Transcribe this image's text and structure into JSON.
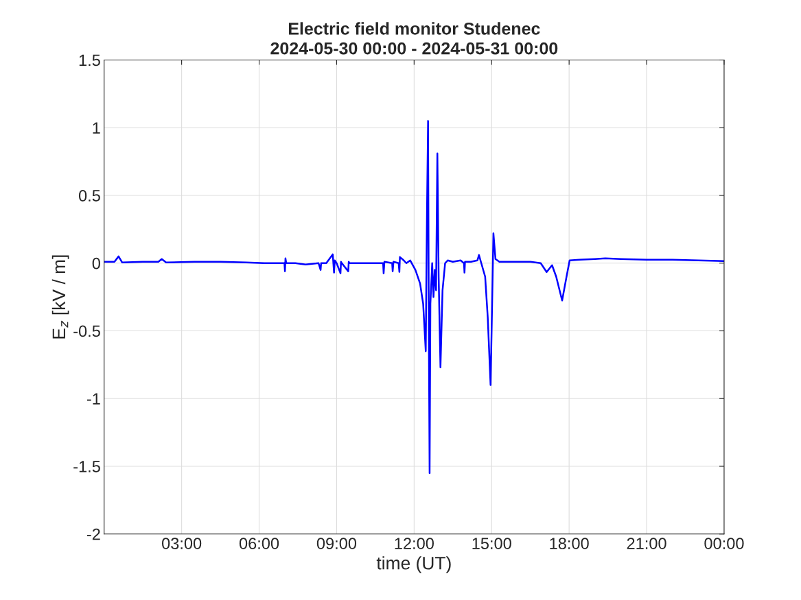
{
  "chart_data": {
    "type": "line",
    "title": "Electric field monitor Studenec\n2024-05-30 00:00 - 2024-05-31 00:00",
    "xlabel": "time (UT)",
    "ylabel": "E$_{z}$ [kV / m]",
    "series": [
      {
        "color": "#0000ff",
        "x": [
          0,
          0.4,
          0.56,
          0.7,
          1.5,
          2.1,
          2.23,
          2.4,
          3.5,
          4.5,
          5.5,
          6.2,
          6.5,
          6.98,
          7.0,
          7.02,
          7.05,
          7.4,
          7.8,
          8.3,
          8.38,
          8.4,
          8.6,
          8.85,
          8.9,
          8.93,
          9.0,
          9.15,
          9.17,
          9.2,
          9.45,
          9.47,
          9.5,
          10.0,
          10.3,
          10.8,
          10.82,
          10.85,
          11.15,
          11.17,
          11.2,
          11.4,
          11.43,
          11.45,
          11.6,
          11.7,
          11.85,
          12.05,
          12.23,
          12.35,
          12.45,
          12.47,
          12.5,
          12.54,
          12.57,
          12.6,
          12.63,
          12.7,
          12.75,
          12.8,
          12.85,
          12.9,
          12.95,
          13.02,
          13.1,
          13.2,
          13.3,
          13.5,
          13.8,
          13.93,
          13.95,
          13.97,
          14.2,
          14.45,
          14.51,
          14.6,
          14.75,
          14.85,
          14.96,
          15.0,
          15.07,
          15.15,
          15.3,
          15.6,
          16.0,
          16.5,
          16.9,
          17.13,
          17.34,
          17.5,
          17.73,
          17.9,
          18.02,
          18.4,
          19.0,
          19.4,
          20.0,
          21.0,
          22.0,
          23.0,
          24.0
        ],
        "values": [
          0.01,
          0.01,
          0.05,
          0.005,
          0.01,
          0.01,
          0.03,
          0.005,
          0.01,
          0.01,
          0.005,
          0.0,
          0.0,
          0.0,
          -0.06,
          0.035,
          0.0,
          0.0,
          -0.01,
          0.0,
          -0.05,
          0.0,
          0.0,
          0.065,
          -0.07,
          0.02,
          0.0,
          -0.075,
          0.01,
          0.0,
          -0.06,
          0.01,
          0.0,
          0.0,
          0.0,
          0.0,
          -0.075,
          0.01,
          0.0,
          -0.06,
          0.01,
          0.0,
          -0.065,
          0.045,
          0.02,
          0.0,
          0.02,
          -0.05,
          -0.15,
          -0.3,
          -0.65,
          -0.2,
          0.4,
          1.05,
          -0.5,
          -1.55,
          -0.3,
          0.0,
          -0.25,
          -0.05,
          -0.2,
          0.81,
          -0.1,
          -0.77,
          -0.2,
          0.0,
          0.02,
          0.01,
          0.02,
          0.0,
          -0.07,
          0.01,
          0.01,
          0.02,
          0.06,
          0.0,
          -0.1,
          -0.4,
          -0.9,
          -0.5,
          0.22,
          0.03,
          0.01,
          0.01,
          0.01,
          0.01,
          0.0,
          -0.066,
          -0.015,
          -0.1,
          -0.276,
          -0.1,
          0.02,
          0.025,
          0.03,
          0.035,
          0.03,
          0.025,
          0.025,
          0.02,
          0.015
        ]
      }
    ],
    "xlim": [
      0,
      24
    ],
    "xticks": [
      {
        "value": 3,
        "label": "03:00"
      },
      {
        "value": 6,
        "label": "06:00"
      },
      {
        "value": 9,
        "label": "09:00"
      },
      {
        "value": 12,
        "label": "12:00"
      },
      {
        "value": 15,
        "label": "15:00"
      },
      {
        "value": 18,
        "label": "18:00"
      },
      {
        "value": 21,
        "label": "21:00"
      },
      {
        "value": 24,
        "label": "00:00"
      }
    ],
    "ylim": [
      -2,
      1.5
    ],
    "yticks": [
      {
        "value": -2,
        "label": "-2"
      },
      {
        "value": -1.5,
        "label": "-1.5"
      },
      {
        "value": -1,
        "label": "-1"
      },
      {
        "value": -0.5,
        "label": "-0.5"
      },
      0,
      0.5,
      1,
      1.5
    ],
    "grid": true,
    "line_style": "solid"
  }
}
